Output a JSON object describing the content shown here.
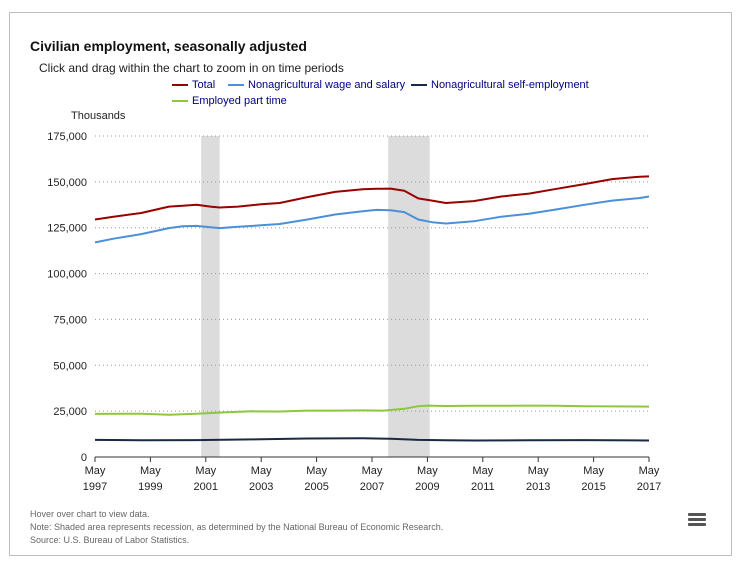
{
  "header": {
    "title": "Civilian employment, seasonally adjusted",
    "subtitle": "Click and drag within the chart to zoom in on time periods"
  },
  "notes": {
    "hover": "Hover over chart to view data.",
    "shaded": "Note: Shaded area represents recession, as determined by the National Bureau of Economic Research.",
    "source": "Source: U.S. Bureau of Labor Statistics."
  },
  "menu": {
    "icon": "hamburger-menu-icon"
  },
  "chart_data": {
    "type": "line",
    "title": "Civilian employment, seasonally adjusted",
    "ylabel": "Thousands",
    "xlabel": "",
    "xlim": [
      1997.333,
      2017.333
    ],
    "ylim": [
      0,
      175000
    ],
    "yticks": [
      0,
      25000,
      50000,
      75000,
      100000,
      125000,
      150000,
      175000
    ],
    "ytick_labels": [
      "0",
      "25,000",
      "50,000",
      "75,000",
      "100,000",
      "125,000",
      "150,000",
      "175,000"
    ],
    "xticks": [
      1997.333,
      1999.333,
      2001.333,
      2003.333,
      2005.333,
      2007.333,
      2009.333,
      2011.333,
      2013.333,
      2015.333,
      2017.333
    ],
    "xtick_labels": [
      [
        "May",
        "1997"
      ],
      [
        "May",
        "1999"
      ],
      [
        "May",
        "2001"
      ],
      [
        "May",
        "2003"
      ],
      [
        "May",
        "2005"
      ],
      [
        "May",
        "2007"
      ],
      [
        "May",
        "2009"
      ],
      [
        "May",
        "2011"
      ],
      [
        "May",
        "2013"
      ],
      [
        "May",
        "2015"
      ],
      [
        "May",
        "2017"
      ]
    ],
    "grid": "horizontal-dotted",
    "legend_position": "top",
    "recessions": [
      [
        2001.167,
        2001.833
      ],
      [
        2007.917,
        2009.417
      ]
    ],
    "series": [
      {
        "name": "Total",
        "color": "#990000",
        "x": [
          1997.333,
          1998.0,
          1999.0,
          2000.0,
          2000.5,
          2001.0,
          2001.5,
          2001.833,
          2002.5,
          2003.333,
          2004.0,
          2005.0,
          2006.0,
          2007.0,
          2007.5,
          2008.0,
          2008.5,
          2009.0,
          2009.5,
          2010.0,
          2011.0,
          2012.0,
          2013.0,
          2014.0,
          2015.0,
          2016.0,
          2017.0,
          2017.333
        ],
        "y": [
          129500,
          131000,
          133000,
          136500,
          137000,
          137500,
          136500,
          136000,
          136500,
          137800,
          138500,
          141700,
          144500,
          146000,
          146200,
          146300,
          145200,
          141000,
          139800,
          138500,
          139500,
          142000,
          143600,
          146200,
          148800,
          151500,
          152800,
          153000
        ]
      },
      {
        "name": "Nonagricultural wage and salary",
        "color": "#4a90d9",
        "x": [
          1997.333,
          1998.0,
          1999.0,
          2000.0,
          2000.5,
          2001.0,
          2001.5,
          2001.833,
          2002.5,
          2003.333,
          2004.0,
          2005.0,
          2006.0,
          2007.0,
          2007.5,
          2008.0,
          2008.5,
          2009.0,
          2009.5,
          2010.0,
          2011.0,
          2012.0,
          2013.0,
          2014.0,
          2015.0,
          2016.0,
          2017.0,
          2017.333
        ],
        "y": [
          117000,
          119000,
          121500,
          124800,
          125800,
          126000,
          125200,
          124800,
          125500,
          126300,
          127000,
          129500,
          132200,
          134000,
          134700,
          134500,
          133500,
          129500,
          128000,
          127300,
          128500,
          131000,
          132600,
          135000,
          137500,
          139800,
          141200,
          142000
        ]
      },
      {
        "name": "Nonagricultural self-employment",
        "color": "#1a2a44",
        "x": [
          1997.333,
          1999.0,
          2001.0,
          2003.0,
          2005.0,
          2007.0,
          2008.0,
          2009.0,
          2010.0,
          2011.0,
          2013.0,
          2015.0,
          2017.333
        ],
        "y": [
          9300,
          9100,
          9200,
          9600,
          10100,
          10200,
          9900,
          9300,
          9100,
          9000,
          9100,
          9200,
          9000
        ]
      },
      {
        "name": "Employed part time",
        "color": "#8dc63f",
        "x": [
          1997.333,
          1999.0,
          2000.0,
          2001.0,
          2002.0,
          2003.0,
          2004.0,
          2005.0,
          2006.0,
          2007.0,
          2007.75,
          2008.5,
          2009.0,
          2009.333,
          2010.0,
          2011.0,
          2012.0,
          2013.0,
          2014.0,
          2015.0,
          2016.0,
          2017.333
        ],
        "y": [
          23500,
          23600,
          23000,
          23600,
          24300,
          24900,
          24800,
          25300,
          25300,
          25400,
          25300,
          26300,
          27700,
          28000,
          27800,
          27900,
          27900,
          28000,
          27900,
          27700,
          27600,
          27500
        ]
      }
    ]
  }
}
